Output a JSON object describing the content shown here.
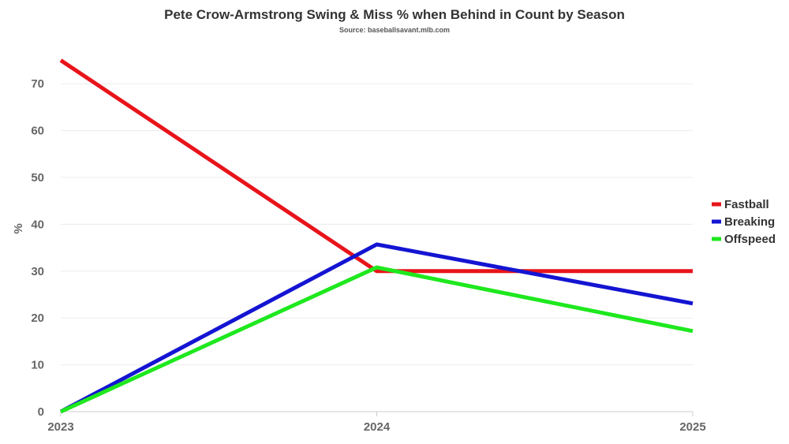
{
  "chart_data": {
    "type": "line",
    "title": "Pete Crow-Armstrong Swing & Miss % when Behind in Count by Season",
    "subtitle": "Source: baseballsavant.mlb.com",
    "xlabel": "",
    "ylabel": "%",
    "x": [
      "2023",
      "2024",
      "2025"
    ],
    "ylim": [
      0,
      77
    ],
    "yticks": [
      0,
      10,
      20,
      30,
      40,
      50,
      60,
      70
    ],
    "grid": true,
    "legend_position": "right",
    "series": [
      {
        "name": "Fastball",
        "color": "#e8141b",
        "values": [
          75,
          30,
          30
        ]
      },
      {
        "name": "Breaking",
        "color": "#1414d2",
        "values": [
          0,
          35.7,
          23.1
        ]
      },
      {
        "name": "Offspeed",
        "color": "#1ee81e",
        "values": [
          0,
          30.8,
          17.2
        ]
      }
    ]
  }
}
